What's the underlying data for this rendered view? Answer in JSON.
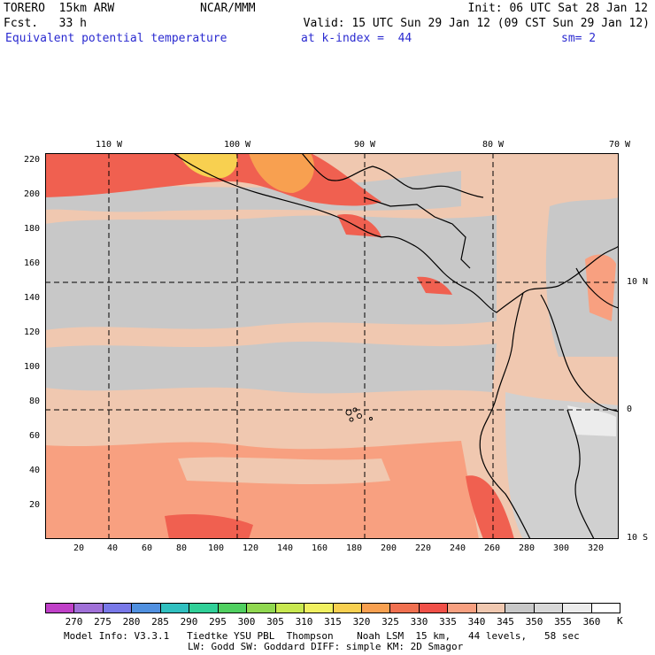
{
  "header": {
    "model": "TORERO  15km ARW",
    "org": "NCAR/MMM",
    "init": "Init: 06 UTC Sat 28 Jan 12",
    "fcst": "Fcst.   33 h",
    "valid": "Valid: 15 UTC Sun 29 Jan 12 (09 CST Sun 29 Jan 12)",
    "field": "Equivalent potential temperature",
    "level": "at k-index =  44",
    "smooth": "sm= 2"
  },
  "map": {
    "lon_labels": [
      "110 W",
      "100 W",
      "90 W",
      "80 W",
      "70 W"
    ],
    "lat_labels": [
      "10 N",
      "0",
      "10 S"
    ],
    "x_ticks": [
      "20",
      "40",
      "60",
      "80",
      "100",
      "120",
      "140",
      "160",
      "180",
      "200",
      "220",
      "240",
      "260",
      "280",
      "300",
      "320"
    ],
    "y_ticks": [
      "220",
      "200",
      "180",
      "160",
      "140",
      "120",
      "100",
      "80",
      "60",
      "40",
      "20"
    ]
  },
  "colorbar": {
    "labels": [
      "270",
      "275",
      "280",
      "285",
      "290",
      "295",
      "300",
      "305",
      "310",
      "315",
      "320",
      "325",
      "330",
      "335",
      "340",
      "345",
      "350",
      "355",
      "360"
    ],
    "unit": "K",
    "colors": [
      "#c040c8",
      "#a070d8",
      "#7878e8",
      "#5090e0",
      "#30c0c0",
      "#30d098",
      "#50d060",
      "#90d850",
      "#c8e850",
      "#f0f060",
      "#f8d050",
      "#f8a050",
      "#f07050",
      "#f05048",
      "#f8a080",
      "#f0c8b0",
      "#c8c8c8",
      "#d8d8d8",
      "#ececec",
      "#ffffff"
    ]
  },
  "footer": {
    "line1": "Model Info: V3.3.1   Tiedtke YSU PBL  Thompson    Noah LSM  15 km,   44 levels,   58 sec",
    "line2": "LW: Godd SW: Goddard DIFF: simple KM: 2D Smagor"
  }
}
